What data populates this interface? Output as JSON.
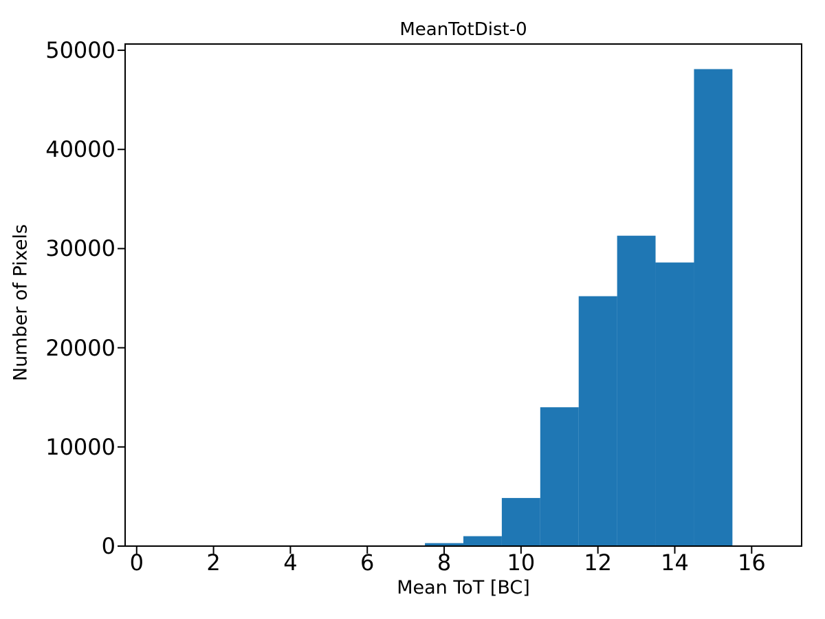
{
  "chart_data": {
    "type": "bar",
    "subtype": "histogram",
    "title": "MeanTotDist-0",
    "xlabel": "Mean ToT [BC]",
    "ylabel": "Number of Pixels",
    "bin_edges": [
      0.5,
      1.5,
      2.5,
      3.5,
      4.5,
      5.5,
      6.5,
      7.5,
      8.5,
      9.5,
      10.5,
      11.5,
      12.5,
      13.5,
      14.5,
      15.5,
      16.5
    ],
    "counts": [
      0,
      0,
      0,
      0,
      0,
      0,
      0,
      300,
      1000,
      4850,
      14000,
      25200,
      31300,
      28600,
      48100,
      0
    ],
    "xticks": [
      0,
      2,
      4,
      6,
      8,
      10,
      12,
      14,
      16
    ],
    "yticks": [
      0,
      10000,
      20000,
      30000,
      40000,
      50000
    ],
    "xlim": [
      -0.3,
      17.3
    ],
    "ylim": [
      0,
      50630
    ],
    "grid": false,
    "legend": false,
    "colors": {
      "bar": "#1f77b4",
      "text": "#000000",
      "spine": "#000000",
      "background": "#ffffff"
    }
  }
}
